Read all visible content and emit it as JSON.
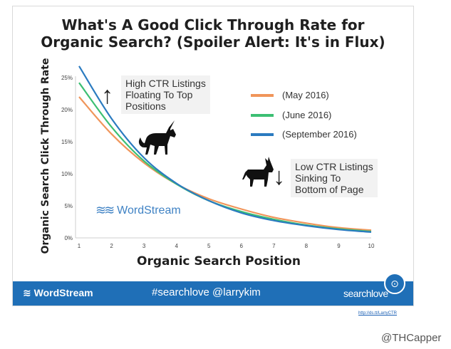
{
  "chart_data": {
    "type": "line",
    "title_line1": "What's A Good Click Through Rate for",
    "title_line2": "Organic Search? (Spoiler Alert: It's in Flux)",
    "xlabel": "Organic Search Position",
    "ylabel": "Organic Search Click Through Rate",
    "x": [
      1,
      2,
      3,
      4,
      5,
      6,
      7,
      8,
      9,
      10
    ],
    "x_ticks": [
      "1",
      "2",
      "3",
      "4",
      "5",
      "6",
      "7",
      "8",
      "9",
      "10"
    ],
    "y_ticks": [
      "0%",
      "5%",
      "10%",
      "15%",
      "20%",
      "25%"
    ],
    "y_tick_values": [
      0,
      5,
      10,
      15,
      20,
      25
    ],
    "xlim": [
      1,
      10
    ],
    "ylim": [
      0,
      27
    ],
    "grid": false,
    "legend_position": "right",
    "series": [
      {
        "name": "(May 2016)",
        "color": "#f0955a",
        "values": [
          22.0,
          16.2,
          11.7,
          8.4,
          6.1,
          4.5,
          3.2,
          2.3,
          1.6,
          1.2
        ]
      },
      {
        "name": "(June 2016)",
        "color": "#3cbf73",
        "values": [
          24.2,
          17.3,
          12.0,
          8.4,
          5.8,
          4.1,
          2.9,
          2.0,
          1.4,
          1.0
        ]
      },
      {
        "name": "(September 2016)",
        "color": "#2b7bc0",
        "values": [
          26.8,
          18.6,
          12.5,
          8.5,
          5.8,
          3.9,
          2.7,
          1.9,
          1.3,
          0.9
        ]
      }
    ]
  },
  "callouts": {
    "high": [
      "High CTR Listings",
      "Floating To Top",
      "Positions"
    ],
    "low": [
      "Low CTR Listings",
      "Sinking To",
      "Bottom of Page"
    ]
  },
  "brand_label": "WordStream",
  "footer": {
    "left": "WordStream",
    "middle": "#searchlove  @larrykim",
    "right": "searchlove"
  },
  "link_text": "http://ds.tt/LarryCTR",
  "handle": "@THCapper"
}
